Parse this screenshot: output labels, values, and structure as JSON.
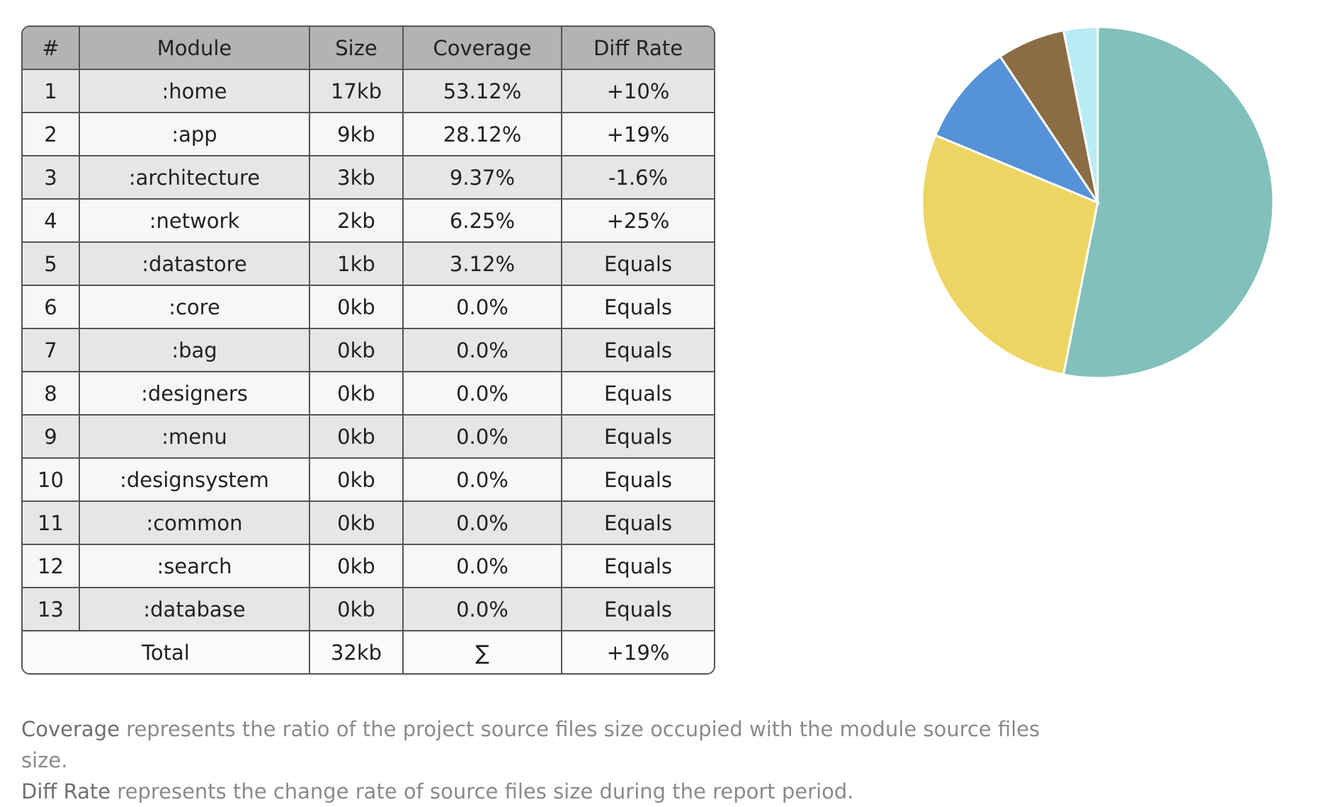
{
  "table": {
    "headers": [
      "#",
      "Module",
      "Size",
      "Coverage",
      "Diff Rate"
    ],
    "rows": [
      {
        "num": "1",
        "module": ":home",
        "size": "17kb",
        "coverage": "53.12%",
        "diff": "+10%"
      },
      {
        "num": "2",
        "module": ":app",
        "size": "9kb",
        "coverage": "28.12%",
        "diff": "+19%"
      },
      {
        "num": "3",
        "module": ":architecture",
        "size": "3kb",
        "coverage": "9.37%",
        "diff": "-1.6%"
      },
      {
        "num": "4",
        "module": ":network",
        "size": "2kb",
        "coverage": "6.25%",
        "diff": "+25%"
      },
      {
        "num": "5",
        "module": ":datastore",
        "size": "1kb",
        "coverage": "3.12%",
        "diff": "Equals"
      },
      {
        "num": "6",
        "module": ":core",
        "size": "0kb",
        "coverage": "0.0%",
        "diff": "Equals"
      },
      {
        "num": "7",
        "module": ":bag",
        "size": "0kb",
        "coverage": "0.0%",
        "diff": "Equals"
      },
      {
        "num": "8",
        "module": ":designers",
        "size": "0kb",
        "coverage": "0.0%",
        "diff": "Equals"
      },
      {
        "num": "9",
        "module": ":menu",
        "size": "0kb",
        "coverage": "0.0%",
        "diff": "Equals"
      },
      {
        "num": "10",
        "module": ":designsystem",
        "size": "0kb",
        "coverage": "0.0%",
        "diff": "Equals"
      },
      {
        "num": "11",
        "module": ":common",
        "size": "0kb",
        "coverage": "0.0%",
        "diff": "Equals"
      },
      {
        "num": "12",
        "module": ":search",
        "size": "0kb",
        "coverage": "0.0%",
        "diff": "Equals"
      },
      {
        "num": "13",
        "module": ":database",
        "size": "0kb",
        "coverage": "0.0%",
        "diff": "Equals"
      }
    ],
    "total": {
      "label": "Total",
      "size": "32kb",
      "coverage": "∑",
      "diff": "+19%"
    }
  },
  "notes": {
    "line1_term": "Coverage",
    "line1_rest": " represents the ratio of the project source files size occupied with the module source files size.",
    "line2_term": "Diff Rate",
    "line2_rest": " represents the change rate of source files size during the report period."
  },
  "chart_data": {
    "type": "pie",
    "categories": [
      ":home",
      ":app",
      ":architecture",
      ":network",
      ":datastore"
    ],
    "values": [
      53.12,
      28.12,
      9.37,
      6.25,
      3.12
    ],
    "colors": [
      "#82c0bb",
      "#edd563",
      "#5592d7",
      "#8b6c44",
      "#b8ecf4"
    ],
    "title": ""
  }
}
